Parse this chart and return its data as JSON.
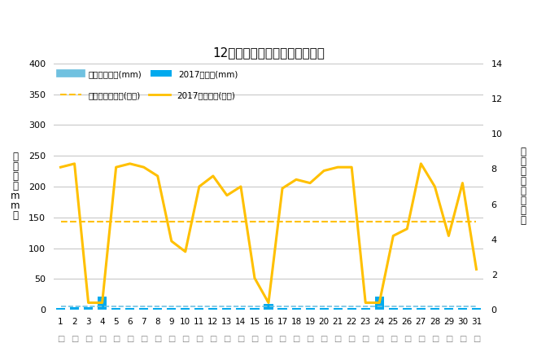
{
  "title": "12月降水量・日照時間（日別）",
  "days": [
    1,
    2,
    3,
    4,
    5,
    6,
    7,
    8,
    9,
    10,
    11,
    12,
    13,
    14,
    15,
    16,
    17,
    18,
    19,
    20,
    21,
    22,
    23,
    24,
    25,
    26,
    27,
    28,
    29,
    30,
    31
  ],
  "precip_avg": [
    5,
    5,
    5,
    5,
    5,
    5,
    5,
    5,
    5,
    5,
    5,
    5,
    5,
    5,
    5,
    5,
    5,
    5,
    5,
    5,
    5,
    5,
    5,
    5,
    5,
    5,
    5,
    5,
    5,
    5,
    5
  ],
  "precip_2017": [
    3,
    4,
    4,
    22,
    3,
    3,
    3,
    3,
    3,
    3,
    3,
    3,
    3,
    3,
    3,
    9,
    3,
    3,
    3,
    3,
    3,
    3,
    3,
    22,
    3,
    3,
    3,
    3,
    3,
    3,
    3
  ],
  "sunshine_2017_hours": [
    8.1,
    8.3,
    0.4,
    0.4,
    8.1,
    8.3,
    8.1,
    7.6,
    3.9,
    3.3,
    7.0,
    7.6,
    6.5,
    7.0,
    1.8,
    0.4,
    6.9,
    7.4,
    7.2,
    7.9,
    8.1,
    8.1,
    0.4,
    0.4,
    4.2,
    4.6,
    8.3,
    7.0,
    4.2,
    7.2,
    2.3
  ],
  "sunshine_avg_hours": [
    5.0,
    5.0,
    5.0,
    5.0,
    5.0,
    5.0,
    5.0,
    5.0,
    5.0,
    5.0,
    5.0,
    5.0,
    5.0,
    5.0,
    5.0,
    5.0,
    5.0,
    5.0,
    5.0,
    5.0,
    5.0,
    5.0,
    5.0,
    5.0,
    5.0,
    5.0,
    5.0,
    5.0,
    5.0,
    5.0,
    5.0
  ],
  "ylabel_left": "降\n水\n量\n（\nm\nm\n）",
  "ylabel_right": "日\n照\n時\n間\n（\n時\n間\n）",
  "legend1": "降水量平年値(mm)",
  "legend2": "2017降水量(mm)",
  "legend3": "日照時間平年値(時間)",
  "legend4": "2017日照時間(時間)",
  "ylim_left": [
    0,
    400
  ],
  "ylim_right": [
    0,
    14
  ],
  "yticks_left": [
    0,
    50,
    100,
    150,
    200,
    250,
    300,
    350,
    400
  ],
  "yticks_right": [
    0,
    2,
    4,
    6,
    8,
    10,
    12,
    14
  ],
  "color_precip_avg": "#70C1E0",
  "color_precip_2017": "#00AAEE",
  "color_sunshine_avg": "#FFC000",
  "color_sunshine_2017": "#FFC000",
  "background_color": "#FFFFFF",
  "grid_color": "#C8C8C8"
}
